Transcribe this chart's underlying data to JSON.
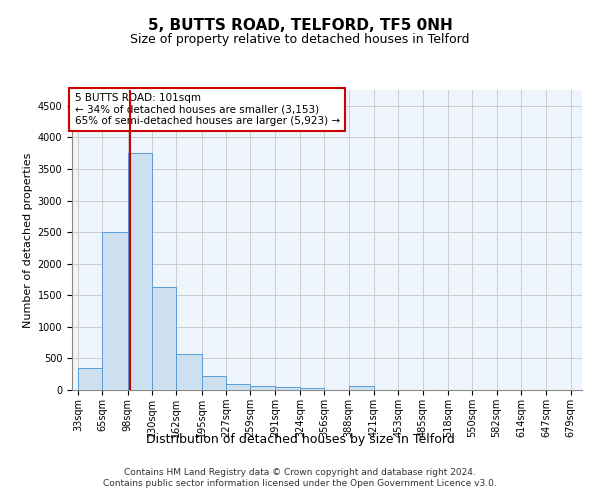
{
  "title1": "5, BUTTS ROAD, TELFORD, TF5 0NH",
  "title2": "Size of property relative to detached houses in Telford",
  "xlabel": "Distribution of detached houses by size in Telford",
  "ylabel": "Number of detached properties",
  "footer1": "Contains HM Land Registry data © Crown copyright and database right 2024.",
  "footer2": "Contains public sector information licensed under the Open Government Licence v3.0.",
  "annotation_title": "5 BUTTS ROAD: 101sqm",
  "annotation_line1": "← 34% of detached houses are smaller (3,153)",
  "annotation_line2": "65% of semi-detached houses are larger (5,923) →",
  "bar_edges": [
    33,
    65,
    98,
    130,
    162,
    195,
    227,
    259,
    291,
    324,
    356,
    388,
    421,
    453,
    485,
    518,
    550,
    582,
    614,
    647,
    679
  ],
  "bar_heights": [
    350,
    2500,
    3750,
    1625,
    575,
    225,
    100,
    60,
    50,
    30,
    0,
    60,
    0,
    0,
    0,
    0,
    0,
    0,
    0,
    0
  ],
  "bar_color": "#cce0f0",
  "bar_edgecolor": "#5b9bd5",
  "property_size": 101,
  "ylim": [
    0,
    4750
  ],
  "yticks": [
    0,
    500,
    1000,
    1500,
    2000,
    2500,
    3000,
    3500,
    4000,
    4500
  ],
  "grid_color": "#cccccc",
  "bg_color": "#eef4fb",
  "red_line_color": "#cc0000",
  "annotation_box_color": "#cc0000",
  "title1_fontsize": 11,
  "title2_fontsize": 9,
  "xlabel_fontsize": 9,
  "ylabel_fontsize": 8,
  "tick_fontsize": 7,
  "annotation_fontsize": 7.5,
  "footer_fontsize": 6.5
}
